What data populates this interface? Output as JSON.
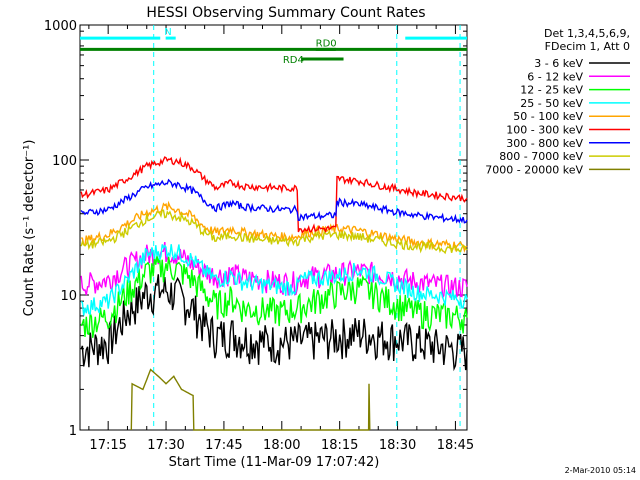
{
  "chart_data": {
    "type": "line",
    "title": "HESSI Observing Summary Count Rates",
    "xlabel": "Start Time (11-Mar-09 17:07:42)",
    "ylabel": "Count Rate (s⁻¹ detector⁻¹)",
    "y_scale": "log",
    "ylim": [
      1,
      1000
    ],
    "xlim_minutes": [
      1027.7,
      1128
    ],
    "x_ticks": [
      {
        "m": 1035,
        "label": "17:15"
      },
      {
        "m": 1050,
        "label": "17:30"
      },
      {
        "m": 1065,
        "label": "17:45"
      },
      {
        "m": 1080,
        "label": "18:00"
      },
      {
        "m": 1095,
        "label": "18:15"
      },
      {
        "m": 1110,
        "label": "18:30"
      },
      {
        "m": 1125,
        "label": "18:45"
      }
    ],
    "y_ticks": [
      {
        "v": 1,
        "label": "1"
      },
      {
        "v": 10,
        "label": "10"
      },
      {
        "v": 100,
        "label": "100"
      },
      {
        "v": 1000,
        "label": "1000"
      }
    ],
    "legend_header": [
      "Det 1,3,4,5,6,9,",
      "FDecim 1, Att 0"
    ],
    "series": [
      {
        "name": "3 - 6 keV",
        "color": "#000000",
        "values": [
          [
            1028,
            4.0
          ],
          [
            1035,
            4.5
          ],
          [
            1040,
            7.5
          ],
          [
            1045,
            10.5
          ],
          [
            1050,
            11.0
          ],
          [
            1053,
            10.0
          ],
          [
            1057,
            8.0
          ],
          [
            1060,
            6.0
          ],
          [
            1063,
            5.0
          ],
          [
            1067,
            5.2
          ],
          [
            1070,
            4.8
          ],
          [
            1075,
            4.6
          ],
          [
            1080,
            4.5
          ],
          [
            1085,
            4.6
          ],
          [
            1090,
            4.8
          ],
          [
            1095,
            5.0
          ],
          [
            1100,
            5.3
          ],
          [
            1105,
            5.0
          ],
          [
            1110,
            4.8
          ],
          [
            1115,
            4.5
          ],
          [
            1120,
            4.2
          ],
          [
            1125,
            4.0
          ],
          [
            1128,
            3.9
          ]
        ]
      },
      {
        "name": "6 - 12 keV",
        "color": "#ff00ff",
        "values": [
          [
            1028,
            12.0
          ],
          [
            1035,
            13.0
          ],
          [
            1040,
            16.5
          ],
          [
            1045,
            20.0
          ],
          [
            1050,
            21.0
          ],
          [
            1053,
            20.0
          ],
          [
            1057,
            17.0
          ],
          [
            1060,
            15.0
          ],
          [
            1063,
            14.0
          ],
          [
            1067,
            14.5
          ],
          [
            1070,
            13.5
          ],
          [
            1075,
            13.0
          ],
          [
            1080,
            12.5
          ],
          [
            1084,
            12.5
          ],
          [
            1085,
            13.5
          ],
          [
            1090,
            14.0
          ],
          [
            1095,
            14.5
          ],
          [
            1100,
            15.0
          ],
          [
            1105,
            14.5
          ],
          [
            1110,
            13.5
          ],
          [
            1115,
            12.5
          ],
          [
            1120,
            12.0
          ],
          [
            1125,
            11.5
          ],
          [
            1128,
            11.5
          ]
        ]
      },
      {
        "name": "12 - 25 keV",
        "color": "#00ff00",
        "values": [
          [
            1028,
            6.0
          ],
          [
            1035,
            7.0
          ],
          [
            1040,
            10.5
          ],
          [
            1045,
            15.0
          ],
          [
            1050,
            16.5
          ],
          [
            1053,
            15.5
          ],
          [
            1057,
            13.0
          ],
          [
            1060,
            10.5
          ],
          [
            1063,
            8.5
          ],
          [
            1067,
            9.5
          ],
          [
            1070,
            8.0
          ],
          [
            1075,
            7.8
          ],
          [
            1080,
            7.5
          ],
          [
            1085,
            8.2
          ],
          [
            1090,
            9.5
          ],
          [
            1095,
            10.5
          ],
          [
            1100,
            11.5
          ],
          [
            1105,
            10.0
          ],
          [
            1110,
            8.5
          ],
          [
            1115,
            7.5
          ],
          [
            1120,
            7.2
          ],
          [
            1125,
            7.0
          ],
          [
            1128,
            6.8
          ]
        ]
      },
      {
        "name": "25 - 50 keV",
        "color": "#00ffff",
        "values": [
          [
            1028,
            8.0
          ],
          [
            1035,
            9.0
          ],
          [
            1040,
            13.0
          ],
          [
            1045,
            20.0
          ],
          [
            1050,
            22.0
          ],
          [
            1053,
            21.0
          ],
          [
            1057,
            18.0
          ],
          [
            1060,
            15.0
          ],
          [
            1063,
            13.0
          ],
          [
            1067,
            14.0
          ],
          [
            1070,
            12.5
          ],
          [
            1075,
            12.0
          ],
          [
            1080,
            11.5
          ],
          [
            1084,
            11.5
          ],
          [
            1085,
            13.0
          ],
          [
            1090,
            13.5
          ],
          [
            1095,
            14.0
          ],
          [
            1100,
            15.5
          ],
          [
            1105,
            14.0
          ],
          [
            1110,
            12.0
          ],
          [
            1115,
            10.5
          ],
          [
            1120,
            10.0
          ],
          [
            1125,
            9.5
          ],
          [
            1128,
            9.3
          ]
        ]
      },
      {
        "name": "50 - 100 keV",
        "color": "#ffa500",
        "values": [
          [
            1028,
            25.0
          ],
          [
            1035,
            28.0
          ],
          [
            1040,
            34.0
          ],
          [
            1045,
            41.0
          ],
          [
            1050,
            45.0
          ],
          [
            1053,
            43.0
          ],
          [
            1057,
            38.0
          ],
          [
            1060,
            32.0
          ],
          [
            1063,
            29.0
          ],
          [
            1067,
            31.0
          ],
          [
            1070,
            29.0
          ],
          [
            1075,
            28.0
          ],
          [
            1080,
            27.0
          ],
          [
            1084,
            27.0
          ],
          [
            1085,
            28.5
          ],
          [
            1090,
            30.0
          ],
          [
            1095,
            31.0
          ],
          [
            1100,
            30.0
          ],
          [
            1105,
            28.0
          ],
          [
            1110,
            26.0
          ],
          [
            1115,
            24.5
          ],
          [
            1120,
            24.0
          ],
          [
            1125,
            23.5
          ],
          [
            1128,
            23.0
          ]
        ]
      },
      {
        "name": "100 - 300 keV",
        "color": "#ff0000",
        "values": [
          [
            1028,
            55.0
          ],
          [
            1035,
            60.0
          ],
          [
            1040,
            73.0
          ],
          [
            1045,
            90.0
          ],
          [
            1050,
            100.0
          ],
          [
            1053,
            98.0
          ],
          [
            1057,
            87.0
          ],
          [
            1060,
            72.0
          ],
          [
            1063,
            62.0
          ],
          [
            1067,
            68.0
          ],
          [
            1070,
            64.0
          ],
          [
            1075,
            63.0
          ],
          [
            1080,
            62.0
          ],
          [
            1084,
            62.0
          ],
          [
            1084.3,
            31.0
          ],
          [
            1090,
            31.0
          ],
          [
            1094,
            31.0
          ],
          [
            1094.3,
            73.0
          ],
          [
            1100,
            70.0
          ],
          [
            1105,
            65.0
          ],
          [
            1110,
            61.0
          ],
          [
            1115,
            57.0
          ],
          [
            1120,
            55.0
          ],
          [
            1125,
            53.0
          ],
          [
            1128,
            52.0
          ]
        ]
      },
      {
        "name": "300 - 800 keV",
        "color": "#0000ff",
        "values": [
          [
            1028,
            40.0
          ],
          [
            1035,
            43.0
          ],
          [
            1040,
            52.0
          ],
          [
            1045,
            63.0
          ],
          [
            1050,
            68.0
          ],
          [
            1053,
            66.0
          ],
          [
            1057,
            59.0
          ],
          [
            1060,
            50.0
          ],
          [
            1063,
            44.0
          ],
          [
            1067,
            48.0
          ],
          [
            1070,
            45.0
          ],
          [
            1075,
            44.0
          ],
          [
            1080,
            43.0
          ],
          [
            1084,
            43.0
          ],
          [
            1084.3,
            38.0
          ],
          [
            1090,
            38.5
          ],
          [
            1094,
            39.0
          ],
          [
            1094.3,
            49.0
          ],
          [
            1100,
            47.0
          ],
          [
            1105,
            44.0
          ],
          [
            1110,
            41.0
          ],
          [
            1115,
            39.0
          ],
          [
            1120,
            37.5
          ],
          [
            1125,
            36.5
          ],
          [
            1128,
            36.0
          ]
        ]
      },
      {
        "name": "800 - 7000 keV",
        "color": "#cccc00",
        "values": [
          [
            1028,
            23.0
          ],
          [
            1035,
            25.0
          ],
          [
            1040,
            30.0
          ],
          [
            1045,
            37.0
          ],
          [
            1050,
            40.0
          ],
          [
            1053,
            38.0
          ],
          [
            1057,
            34.0
          ],
          [
            1060,
            29.0
          ],
          [
            1063,
            26.0
          ],
          [
            1067,
            28.0
          ],
          [
            1070,
            26.5
          ],
          [
            1075,
            25.5
          ],
          [
            1080,
            25.0
          ],
          [
            1084,
            25.0
          ],
          [
            1085,
            26.0
          ],
          [
            1090,
            27.5
          ],
          [
            1095,
            28.0
          ],
          [
            1100,
            27.0
          ],
          [
            1105,
            25.5
          ],
          [
            1110,
            24.0
          ],
          [
            1115,
            23.0
          ],
          [
            1120,
            22.5
          ],
          [
            1125,
            22.0
          ],
          [
            1128,
            21.5
          ]
        ]
      },
      {
        "name": "7000 - 20000 keV",
        "color": "#808000",
        "values": [
          [
            1041,
            1.0
          ],
          [
            1041.2,
            2.2
          ],
          [
            1044,
            2.0
          ],
          [
            1046,
            2.8
          ],
          [
            1048,
            2.5
          ],
          [
            1050,
            2.2
          ],
          [
            1052,
            2.5
          ],
          [
            1054,
            2.0
          ],
          [
            1057,
            1.8
          ],
          [
            1057.2,
            1.0
          ],
          [
            1102.5,
            1.0
          ],
          [
            1102.6,
            2.2
          ],
          [
            1102.8,
            1.0
          ]
        ]
      }
    ],
    "flags": [
      {
        "label": "N",
        "color": "#00ffff",
        "y": 800,
        "segments": [
          [
            1027.7,
            1048.5
          ],
          [
            1052.5,
            1049.9
          ],
          [
            1112,
            1128
          ]
        ]
      },
      {
        "label": "",
        "color": "#008000",
        "y": 660,
        "segments": [
          [
            1027.7,
            1128
          ]
        ]
      },
      {
        "label": "RD0",
        "color": "#008000",
        "y": 660,
        "segments": [
          [
            1088.8,
            1094
          ]
        ]
      },
      {
        "label": "RD4",
        "color": "#008000",
        "y": 560,
        "segments": [
          [
            1085,
            1096
          ]
        ]
      }
    ],
    "vlines": [
      1046.8,
      1109.8,
      1126.2
    ],
    "grid": false
  },
  "footer": {
    "date": "2-Mar-2010 05:14"
  }
}
